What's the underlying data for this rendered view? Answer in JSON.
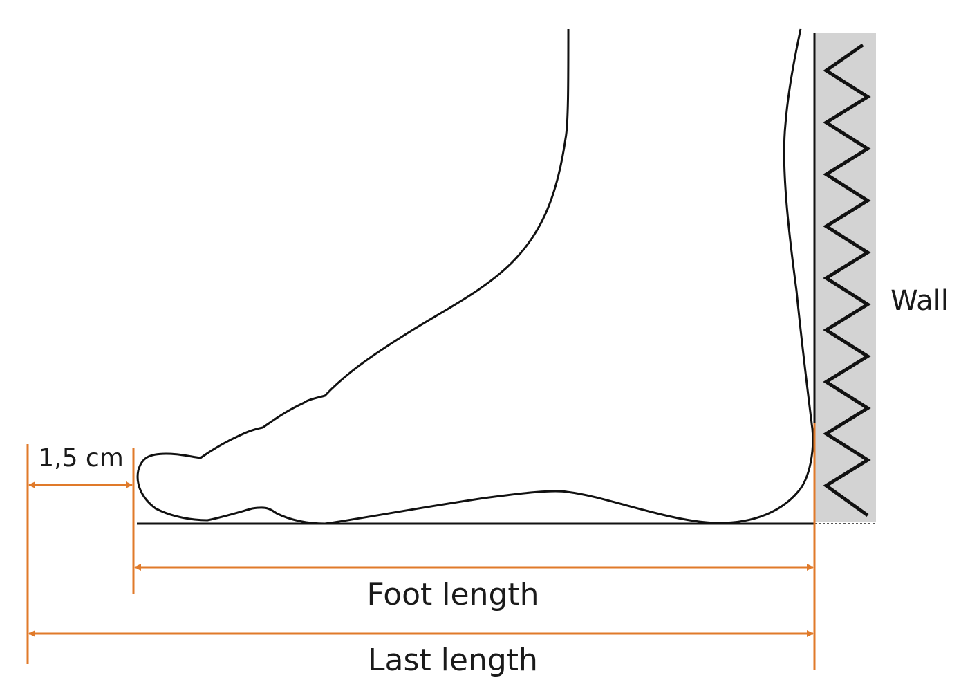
{
  "labels": {
    "offset": "1,5 cm",
    "foot_length": "Foot length",
    "last_length": "Last length",
    "wall": "Wall"
  }
}
